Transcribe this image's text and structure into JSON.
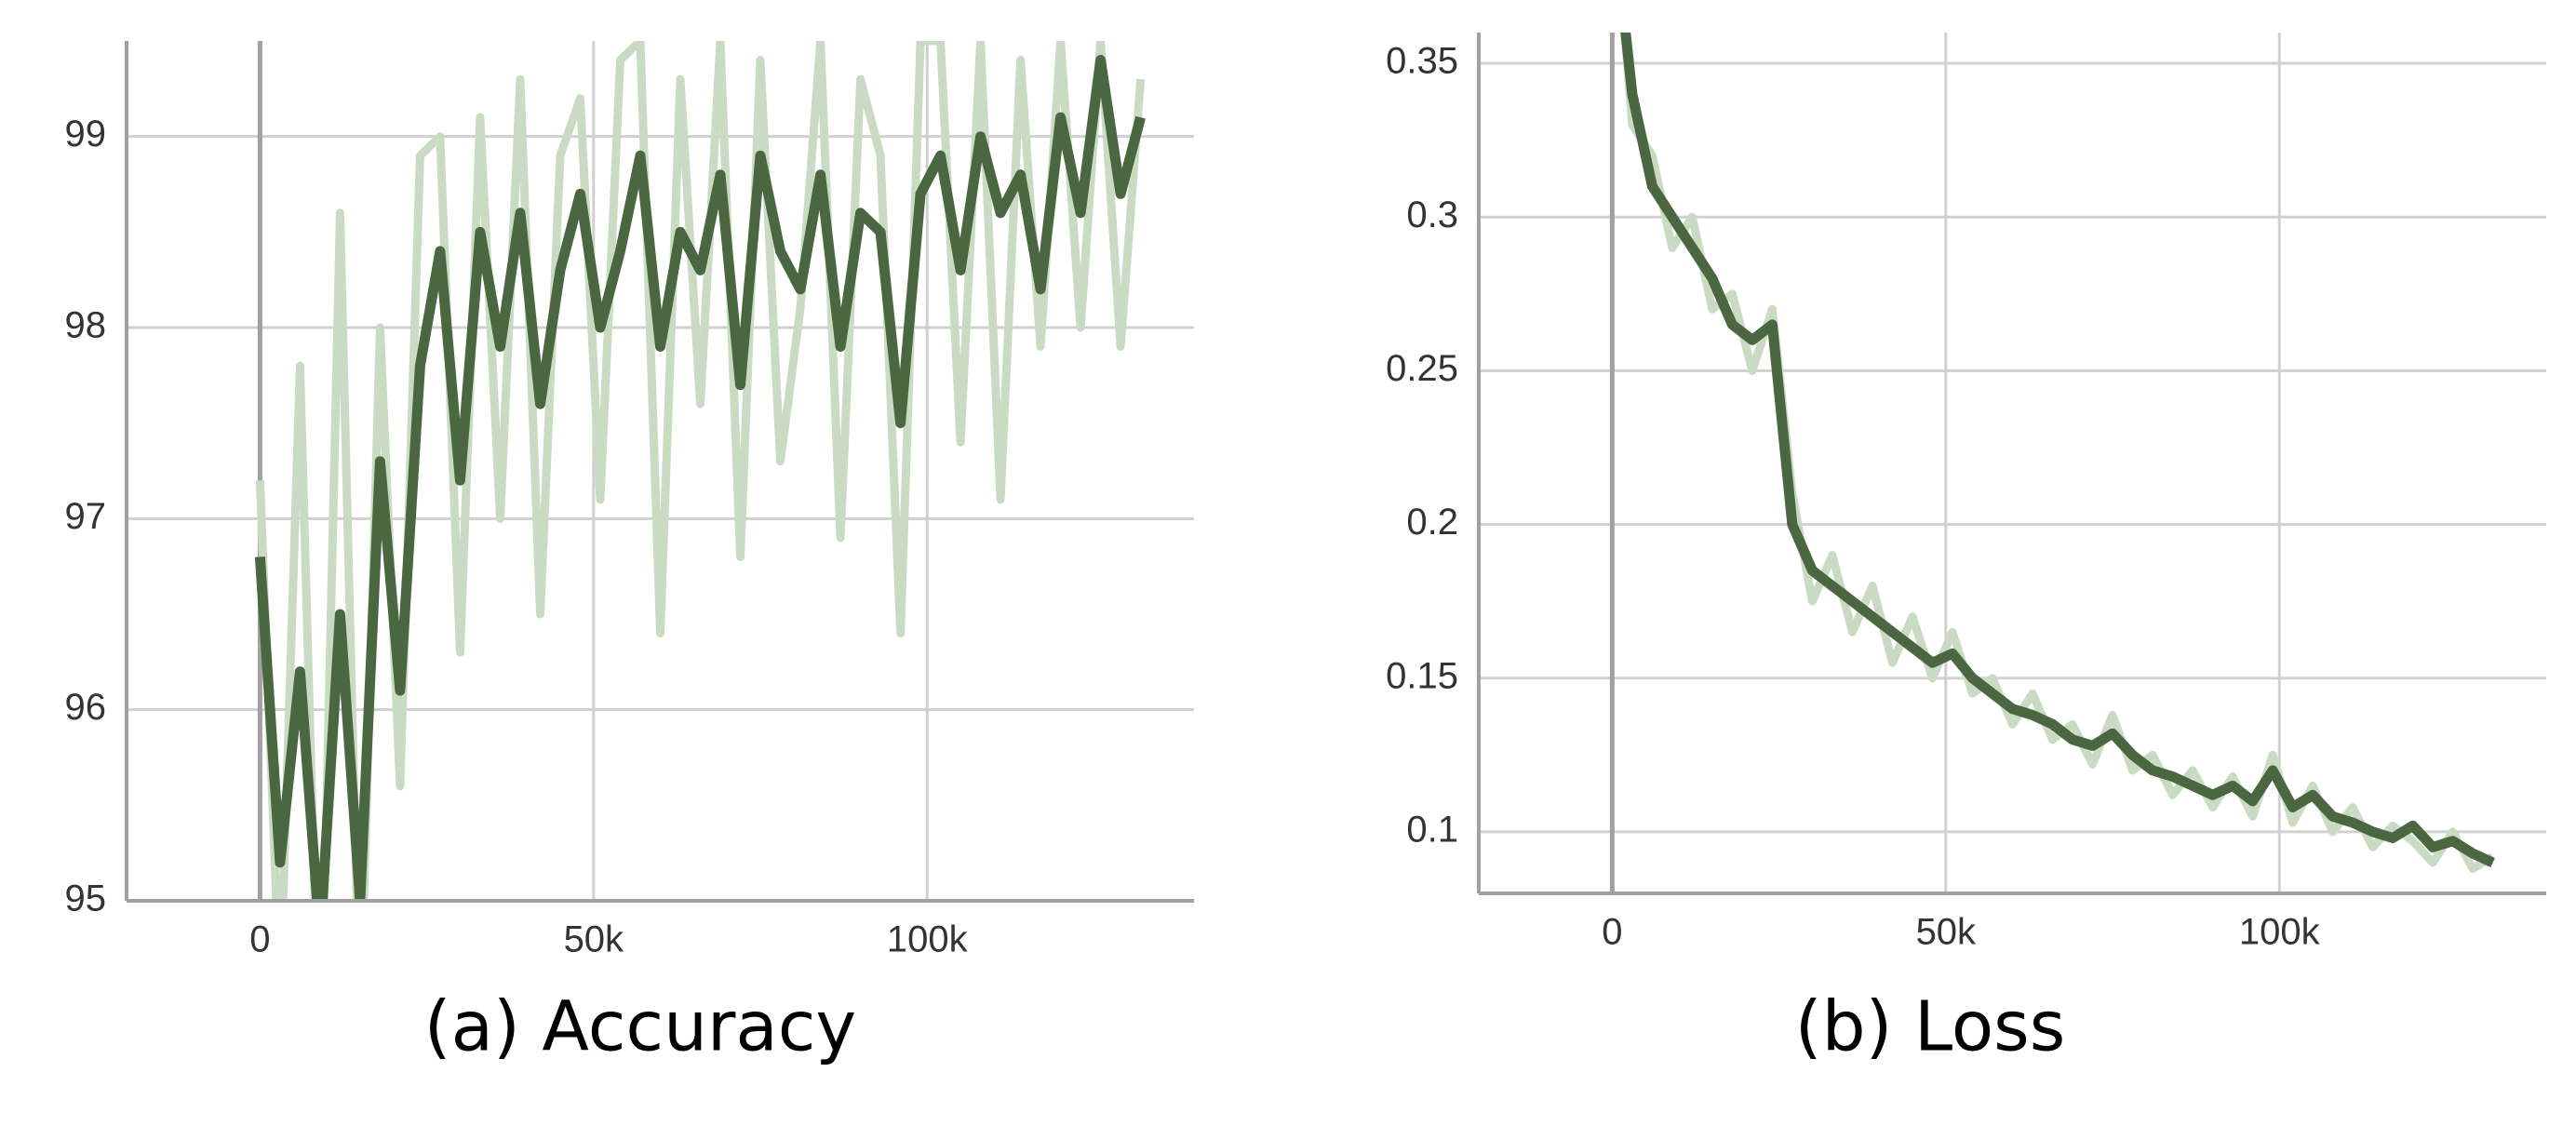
{
  "chart_data": [
    {
      "type": "line",
      "caption": "(a) Accuracy",
      "x": [
        0,
        3000,
        6000,
        9000,
        12000,
        15000,
        18000,
        21000,
        24000,
        27000,
        30000,
        33000,
        36000,
        39000,
        42000,
        45000,
        48000,
        51000,
        54000,
        57000,
        60000,
        63000,
        66000,
        69000,
        72000,
        75000,
        78000,
        81000,
        84000,
        87000,
        90000,
        93000,
        96000,
        99000,
        102000,
        105000,
        108000,
        111000,
        114000,
        117000,
        120000,
        123000,
        126000,
        129000,
        132000
      ],
      "series": [
        {
          "color": "#c9dcc3",
          "values": [
            97.2,
            94.5,
            97.8,
            94.0,
            98.6,
            94.3,
            98.0,
            95.6,
            98.9,
            99.0,
            96.3,
            99.1,
            97.0,
            99.3,
            96.5,
            98.9,
            99.2,
            97.1,
            99.4,
            99.5,
            96.4,
            99.3,
            97.6,
            99.5,
            96.8,
            99.4,
            97.3,
            98.1,
            99.5,
            96.9,
            99.3,
            98.9,
            96.4,
            99.5,
            99.5,
            97.4,
            99.5,
            97.1,
            99.4,
            97.9,
            99.5,
            98.0,
            99.5,
            97.9,
            99.3
          ]
        },
        {
          "color": "#4a6741",
          "values": [
            96.8,
            95.2,
            96.2,
            94.8,
            96.5,
            95.0,
            97.3,
            96.1,
            97.8,
            98.4,
            97.2,
            98.5,
            97.9,
            98.6,
            97.6,
            98.3,
            98.7,
            98.0,
            98.4,
            98.9,
            97.9,
            98.5,
            98.3,
            98.8,
            97.7,
            98.9,
            98.4,
            98.2,
            98.8,
            97.9,
            98.6,
            98.5,
            97.5,
            98.7,
            98.9,
            98.3,
            99.0,
            98.6,
            98.8,
            98.2,
            99.1,
            98.6,
            99.4,
            98.7,
            99.1
          ]
        }
      ],
      "xlim": [
        -20000,
        140000
      ],
      "xticks": [
        0,
        {
          "value": 50000,
          "label": "50k"
        },
        {
          "value": 100000,
          "label": "100k"
        }
      ],
      "ylim": [
        95,
        99.5
      ],
      "yticks": [
        95,
        96,
        97,
        98,
        99
      ],
      "grid": true
    },
    {
      "type": "line",
      "caption": "(b) Loss",
      "x": [
        0,
        3000,
        6000,
        9000,
        12000,
        15000,
        18000,
        21000,
        24000,
        27000,
        30000,
        33000,
        36000,
        39000,
        42000,
        45000,
        48000,
        51000,
        54000,
        57000,
        60000,
        63000,
        66000,
        69000,
        72000,
        75000,
        78000,
        81000,
        84000,
        87000,
        90000,
        93000,
        96000,
        99000,
        102000,
        105000,
        108000,
        111000,
        114000,
        117000,
        120000,
        123000,
        126000,
        129000,
        132000
      ],
      "series": [
        {
          "color": "#c9dcc3",
          "values": [
            0.41,
            0.33,
            0.32,
            0.29,
            0.3,
            0.27,
            0.275,
            0.25,
            0.27,
            0.21,
            0.175,
            0.19,
            0.165,
            0.18,
            0.155,
            0.17,
            0.15,
            0.165,
            0.145,
            0.15,
            0.135,
            0.145,
            0.13,
            0.135,
            0.122,
            0.138,
            0.12,
            0.125,
            0.112,
            0.12,
            0.108,
            0.118,
            0.105,
            0.125,
            0.103,
            0.115,
            0.1,
            0.108,
            0.095,
            0.102,
            0.097,
            0.09,
            0.1,
            0.088,
            0.092
          ]
        },
        {
          "color": "#4a6741",
          "values": [
            0.4,
            0.34,
            0.31,
            0.3,
            0.29,
            0.28,
            0.265,
            0.26,
            0.265,
            0.2,
            0.185,
            0.18,
            0.175,
            0.17,
            0.165,
            0.16,
            0.155,
            0.158,
            0.15,
            0.145,
            0.14,
            0.138,
            0.135,
            0.13,
            0.128,
            0.132,
            0.125,
            0.12,
            0.118,
            0.115,
            0.112,
            0.115,
            0.11,
            0.12,
            0.108,
            0.112,
            0.105,
            0.103,
            0.1,
            0.098,
            0.102,
            0.095,
            0.097,
            0.093,
            0.09
          ]
        }
      ],
      "xlim": [
        -20000,
        140000
      ],
      "xticks": [
        0,
        {
          "value": 50000,
          "label": "50k"
        },
        {
          "value": 100000,
          "label": "100k"
        }
      ],
      "ylim": [
        0.08,
        0.36
      ],
      "yticks": [
        0.1,
        0.15,
        0.2,
        0.25,
        0.3,
        0.35
      ],
      "grid": true
    }
  ]
}
